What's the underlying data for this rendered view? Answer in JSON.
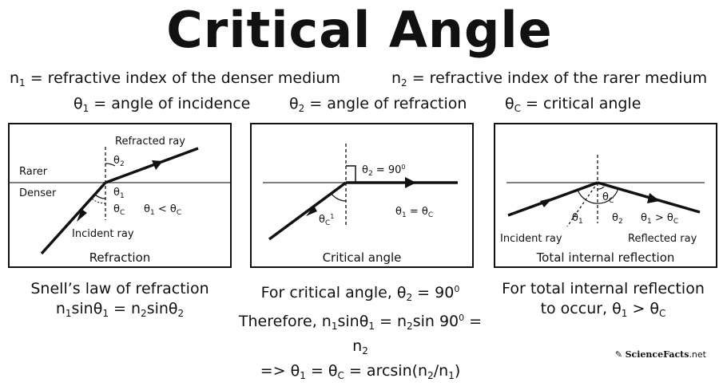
{
  "title": "Critical Angle",
  "definitions": {
    "n1": {
      "sym": "n",
      "sub": "1",
      "text": " = refractive index of the denser medium"
    },
    "n2": {
      "sym": "n",
      "sub": "2",
      "text": " = refractive index of the rarer medium"
    },
    "theta1": {
      "sym": "θ",
      "sub": "1",
      "text": " = angle of incidence"
    },
    "theta2": {
      "sym": "θ",
      "sub": "2",
      "text": " = angle of refraction"
    },
    "thetac": {
      "sym": "θ",
      "sub": "C",
      "text": " = critical angle"
    }
  },
  "panel1": {
    "caption": "Refraction",
    "refracted_ray": "Refracted ray",
    "rarer": "Rarer",
    "denser": "Denser",
    "incident_ray": "Incident ray",
    "relation": "θ1 < θC"
  },
  "panel2": {
    "caption": "Critical angle",
    "right_angle": "θ2 = 90",
    "relation": "θ1 = θC"
  },
  "panel3": {
    "caption": "Total internal reflection",
    "incident_ray": "Incident ray",
    "reflected_ray": "Reflected ray",
    "relation": "θ1 > θC"
  },
  "bottom": {
    "snell_title": "Snell’s law of refraction",
    "snell_eq": "n1sinθ1 = n2sinθ2",
    "crit_title": "For critical angle, θ2 = 90",
    "crit_eq": "Therefore, n1sinθ1 = n2sin 90 = n2",
    "crit_result": "=> θ1 = θC = arcsin(n2/n1)",
    "tir_title": "For total internal reflection",
    "tir_cond": "to occur, θ1 > θC"
  },
  "logo": {
    "brand": "ScienceFacts",
    "suffix": ".net"
  }
}
